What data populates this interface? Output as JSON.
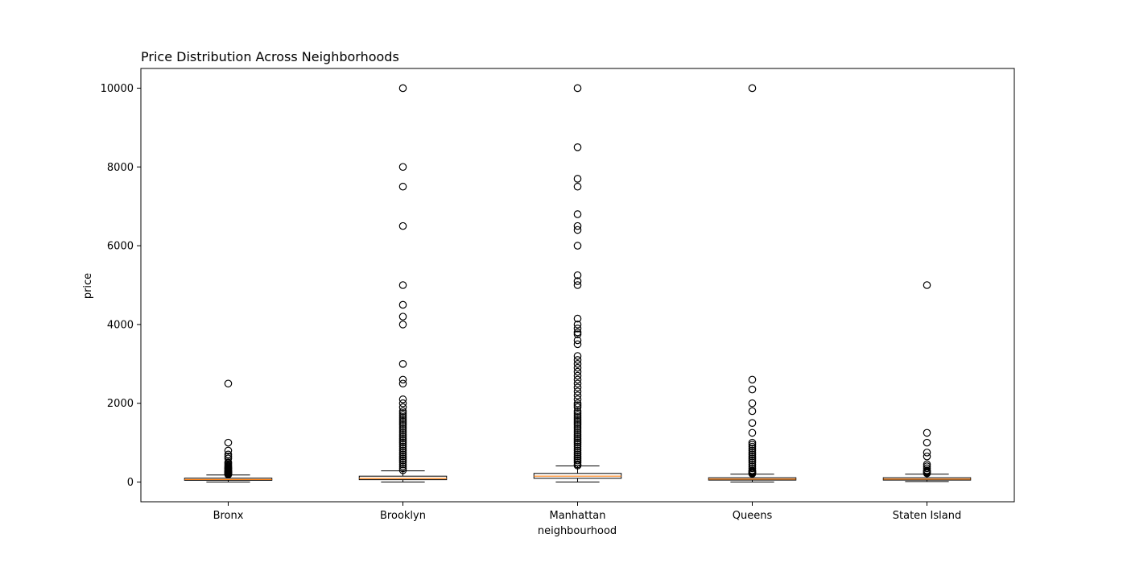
{
  "chart_data": {
    "type": "box",
    "title": "Price Distribution Across Neighborhoods",
    "xlabel": "neighbourhood",
    "ylabel": "price",
    "ylim": [
      -500,
      10500
    ],
    "yticks": [
      0,
      2000,
      4000,
      6000,
      8000,
      10000
    ],
    "grid": false,
    "categories": [
      "Bronx",
      "Brooklyn",
      "Manhattan",
      "Queens",
      "Staten Island"
    ],
    "box_color": "#ffffff",
    "median_color": "#ff7f0e",
    "boxes": [
      {
        "name": "Bronx",
        "whisker_low": 0,
        "q1": 45,
        "median": 65,
        "q3": 99,
        "whisker_high": 180,
        "outliers": [
          2500,
          1000,
          800,
          700,
          650,
          600,
          500,
          480,
          450,
          420,
          400,
          380,
          360,
          350,
          340,
          320,
          300,
          290,
          280,
          270,
          260,
          250,
          240,
          230,
          220,
          210,
          200,
          195,
          190
        ]
      },
      {
        "name": "Brooklyn",
        "whisker_low": 0,
        "q1": 60,
        "median": 90,
        "q3": 150,
        "whisker_high": 285,
        "outliers": [
          10000,
          8000,
          7500,
          6500,
          5000,
          4500,
          4200,
          4000,
          3000,
          2600,
          2500,
          2100,
          2000,
          1900,
          1800,
          1750,
          1700,
          1650,
          1600,
          1550,
          1500,
          1450,
          1400,
          1350,
          1300,
          1250,
          1200,
          1150,
          1100,
          1050,
          1000,
          950,
          900,
          850,
          800,
          750,
          700,
          650,
          600,
          550,
          500,
          450,
          400,
          350,
          300
        ]
      },
      {
        "name": "Manhattan",
        "whisker_low": 0,
        "q1": 95,
        "median": 150,
        "q3": 220,
        "whisker_high": 410,
        "outliers": [
          10000,
          8500,
          7700,
          7500,
          6800,
          6500,
          6400,
          6000,
          5250,
          5100,
          5000,
          4150,
          4000,
          3900,
          3800,
          3750,
          3600,
          3500,
          3200,
          3100,
          3000,
          2900,
          2800,
          2700,
          2600,
          2500,
          2400,
          2300,
          2200,
          2100,
          2000,
          1950,
          1900,
          1800,
          1750,
          1700,
          1650,
          1600,
          1550,
          1500,
          1450,
          1400,
          1350,
          1300,
          1250,
          1200,
          1150,
          1100,
          1050,
          1000,
          950,
          900,
          850,
          800,
          750,
          700,
          650,
          600,
          550,
          500,
          450,
          420
        ]
      },
      {
        "name": "Queens",
        "whisker_low": 0,
        "q1": 50,
        "median": 75,
        "q3": 110,
        "whisker_high": 200,
        "outliers": [
          10000,
          2600,
          2350,
          2000,
          1800,
          1500,
          1250,
          1000,
          950,
          900,
          850,
          800,
          750,
          700,
          650,
          600,
          550,
          500,
          450,
          400,
          350,
          300,
          280,
          260,
          240,
          220,
          210
        ]
      },
      {
        "name": "Staten Island",
        "whisker_low": 13,
        "q1": 50,
        "median": 75,
        "q3": 110,
        "whisker_high": 200,
        "outliers": [
          5000,
          1250,
          1000,
          750,
          650,
          450,
          400,
          350,
          300,
          280,
          260,
          240,
          220
        ]
      }
    ]
  }
}
